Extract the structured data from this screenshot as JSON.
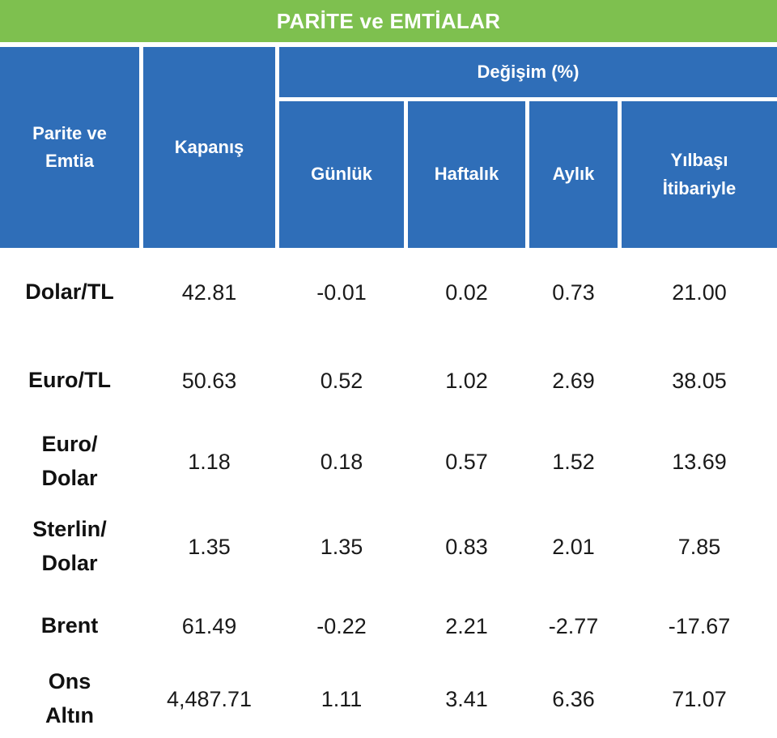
{
  "title": "PARİTE ve EMTİALAR",
  "colors": {
    "title_bg": "#7ec04f",
    "header_bg": "#2f6eb8",
    "header_text": "#ffffff",
    "body_text": "#1a1a1a"
  },
  "header": {
    "col_name": "Parite ve\nEmtia",
    "col_close": "Kapanış",
    "change_group": "Değişim (%)",
    "col_daily": "Günlük",
    "col_weekly": "Haftalık",
    "col_monthly": "Aylık",
    "col_ytd": "Yılbaşı\nİtibariyle"
  },
  "rows": [
    {
      "name": "Dolar/TL",
      "close": "42.81",
      "daily": "-0.01",
      "weekly": "0.02",
      "monthly": "0.73",
      "ytd": "21.00"
    },
    {
      "name": "Euro/TL",
      "close": "50.63",
      "daily": "0.52",
      "weekly": "1.02",
      "monthly": "2.69",
      "ytd": "38.05"
    },
    {
      "name": "Euro/\nDolar",
      "close": "1.18",
      "daily": "0.18",
      "weekly": "0.57",
      "monthly": "1.52",
      "ytd": "13.69"
    },
    {
      "name": "Sterlin/\nDolar",
      "close": "1.35",
      "daily": "1.35",
      "weekly": "0.83",
      "monthly": "2.01",
      "ytd": "7.85"
    },
    {
      "name": "Brent",
      "close": "61.49",
      "daily": "-0.22",
      "weekly": "2.21",
      "monthly": "-2.77",
      "ytd": "-17.67"
    },
    {
      "name": "Ons\nAltın",
      "close": "4,487.71",
      "daily": "1.11",
      "weekly": "3.41",
      "monthly": "6.36",
      "ytd": "71.07"
    }
  ]
}
